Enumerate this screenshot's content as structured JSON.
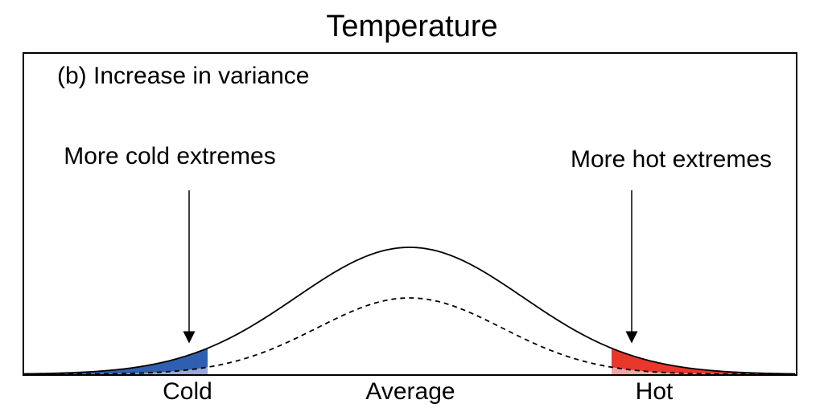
{
  "figure": {
    "title": "Temperature",
    "panel_label": "(b) Increase in variance",
    "annotations": {
      "cold": "More cold extremes",
      "hot": "More hot extremes"
    },
    "axis_labels": {
      "cold": "Cold",
      "average": "Average",
      "hot": "Hot"
    },
    "colors": {
      "cold_fill": "#2f5fb0",
      "cold_fill_light": "#9aa8d8",
      "hot_fill": "#e8382c",
      "hot_fill_light": "#f4a6a6",
      "curve": "#000000"
    },
    "curves": {
      "new_distribution": "solid, wider (increased variance)",
      "old_distribution": "dashed, narrower"
    }
  }
}
